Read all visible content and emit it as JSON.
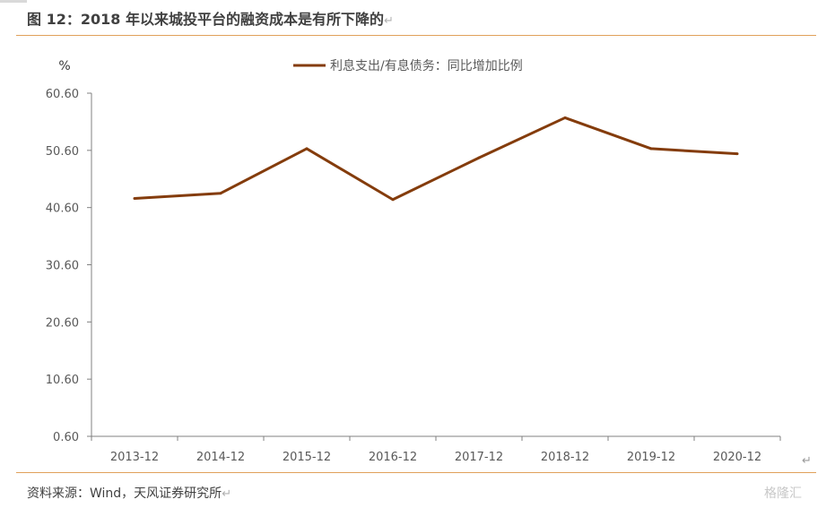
{
  "header": {
    "title": "图 12：2018 年以来城投平台的融资成本是有所下降的",
    "mark": "↵"
  },
  "footer": {
    "source": "资料来源：Wind，天风证券研究所",
    "mark": "↵",
    "watermark": "格隆汇"
  },
  "corner_mark": "↵",
  "colors": {
    "series": "#843c0c",
    "rule": "#e0a15a",
    "axis": "#808080",
    "text": "#595959"
  },
  "chart_data": {
    "type": "line",
    "title": "",
    "ylabel": "%",
    "xlabel": "",
    "categories": [
      "2013-12",
      "2014-12",
      "2015-12",
      "2016-12",
      "2017-12",
      "2018-12",
      "2019-12",
      "2020-12"
    ],
    "ylim": [
      0.6,
      60.6
    ],
    "yticks": [
      "0.60",
      "10.60",
      "20.60",
      "30.60",
      "40.60",
      "50.60",
      "60.60"
    ],
    "grid": false,
    "legend": "top-center",
    "series": [
      {
        "name": "利息支出/有息债务：同比增加比例",
        "values": [
          42.2,
          43.1,
          50.9,
          42.0,
          49.3,
          56.3,
          50.9,
          50.0
        ]
      }
    ]
  }
}
